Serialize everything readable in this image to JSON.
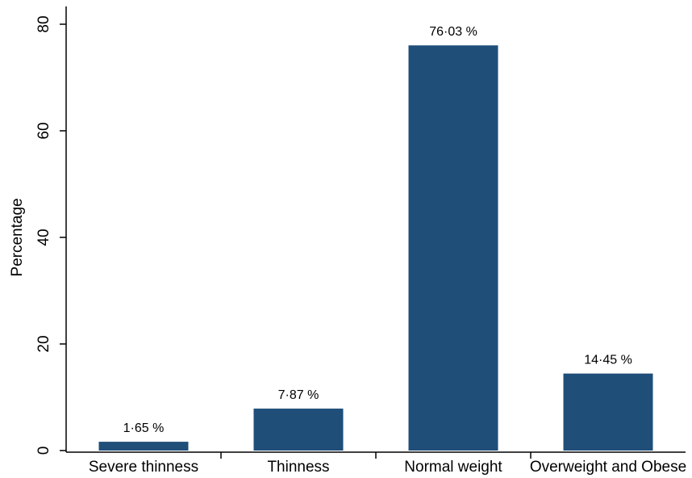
{
  "chart_data": {
    "type": "bar",
    "title": "",
    "xlabel": "",
    "ylabel": "Percentage",
    "ylim": [
      0,
      80
    ],
    "yticks": [
      0,
      20,
      40,
      60,
      80
    ],
    "ytick_labels": [
      "0",
      "20",
      "40",
      "60",
      "80"
    ],
    "categories": [
      "Severe thinness",
      "Thinness",
      "Normal weight",
      "Overweight and Obese"
    ],
    "values": [
      1.65,
      7.87,
      76.03,
      14.45
    ],
    "value_labels": [
      "1·65 %",
      "7·87 %",
      "76·03 %",
      "14·45 %"
    ],
    "bar_color": "#1f4e79",
    "grid": false,
    "legend": "none"
  }
}
